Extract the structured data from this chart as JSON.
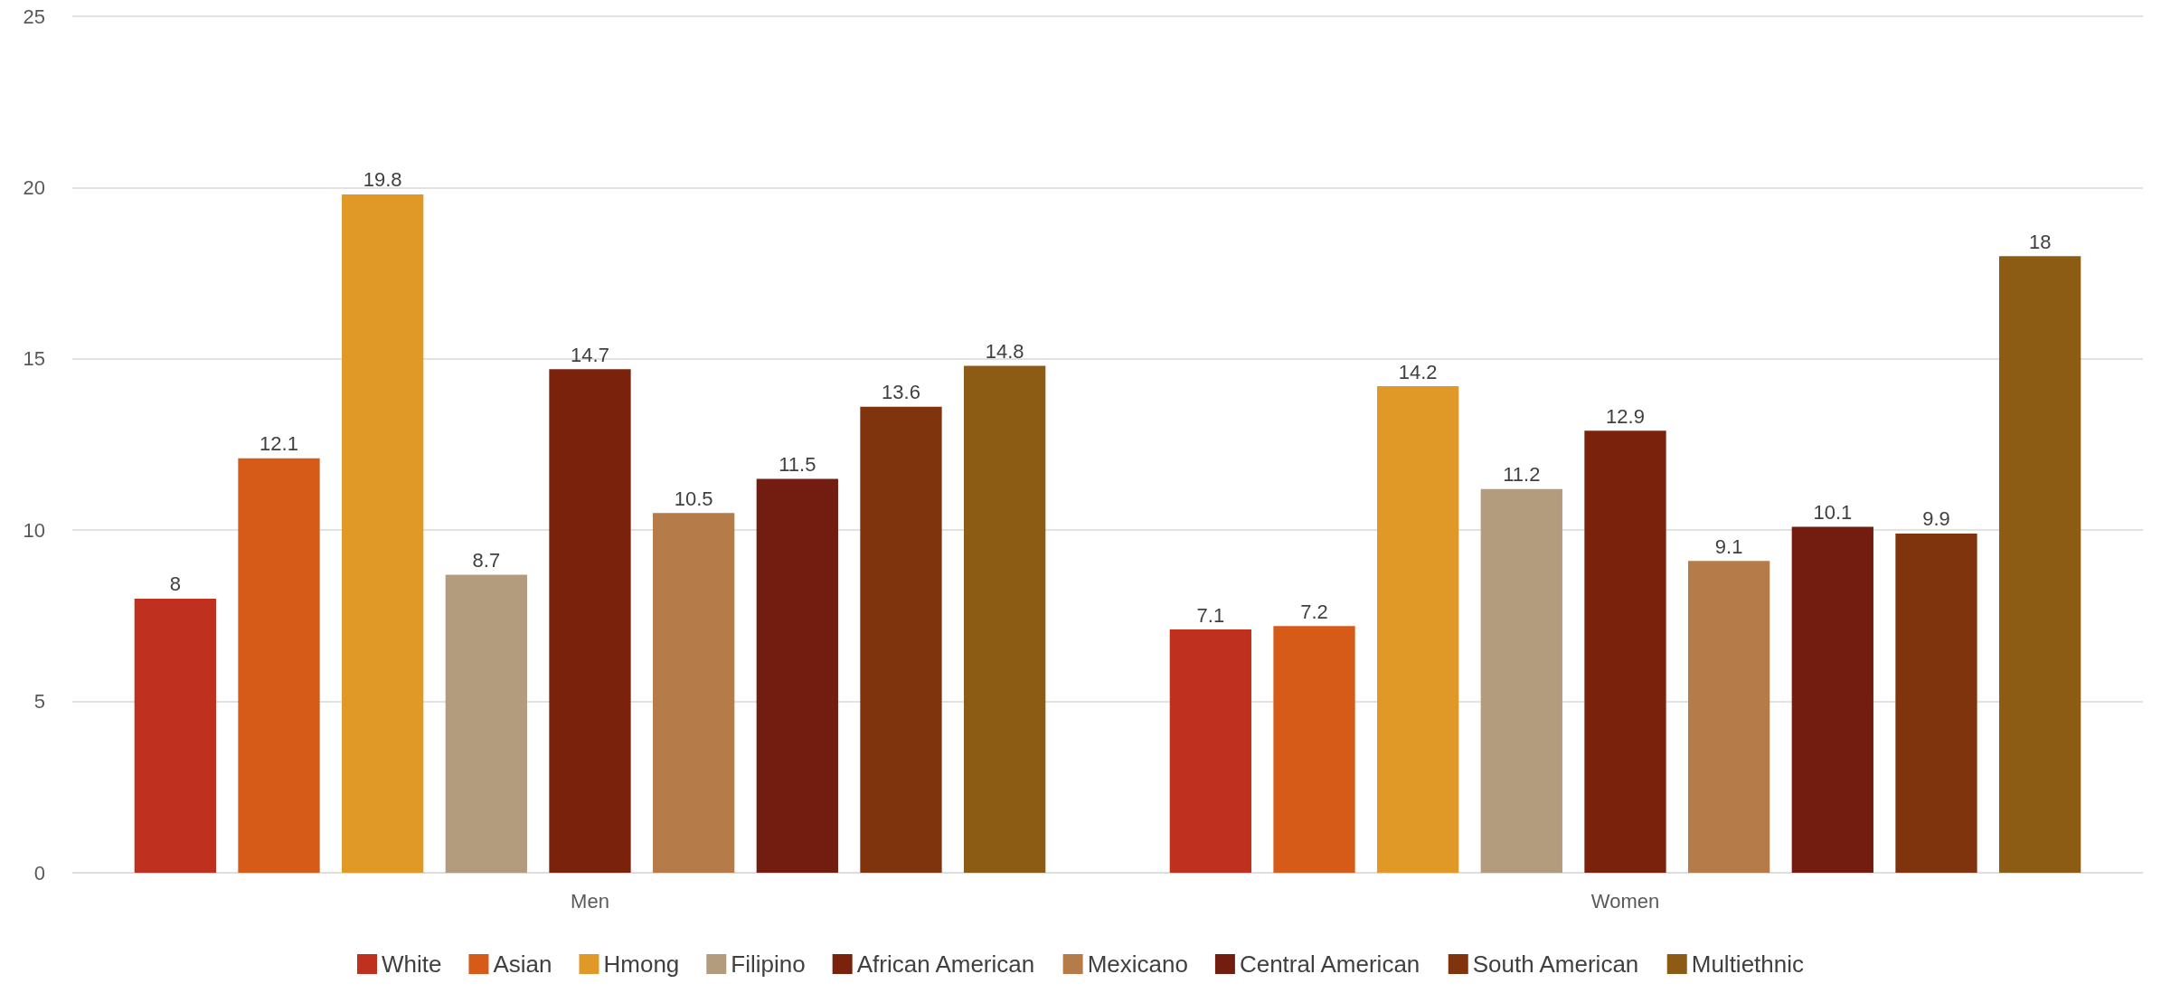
{
  "chart_data": {
    "type": "bar",
    "categories": [
      "Men",
      "Women"
    ],
    "series": [
      {
        "name": "White",
        "color": "#c0301e",
        "values": [
          8,
          7.1
        ]
      },
      {
        "name": "Asian",
        "color": "#d65a18",
        "values": [
          12.1,
          7.2
        ]
      },
      {
        "name": "Hmong",
        "color": "#e09826",
        "values": [
          19.8,
          14.2
        ]
      },
      {
        "name": "Filipino",
        "color": "#b39c7e",
        "values": [
          8.7,
          11.2
        ]
      },
      {
        "name": "African American",
        "color": "#7b220d",
        "values": [
          14.7,
          12.9
        ]
      },
      {
        "name": "Mexicano",
        "color": "#b57c4a",
        "values": [
          10.5,
          9.1
        ]
      },
      {
        "name": "Central American",
        "color": "#731c10",
        "values": [
          11.5,
          10.1
        ]
      },
      {
        "name": "South American",
        "color": "#80340e",
        "values": [
          13.6,
          9.9
        ]
      },
      {
        "name": "Multiethnic",
        "color": "#8c5c14",
        "values": [
          14.8,
          18
        ]
      }
    ],
    "ylim": [
      0,
      25
    ],
    "yticks": [
      0,
      5,
      10,
      15,
      20,
      25
    ],
    "grid": "y",
    "legend": "bottom",
    "data_labels": true
  }
}
